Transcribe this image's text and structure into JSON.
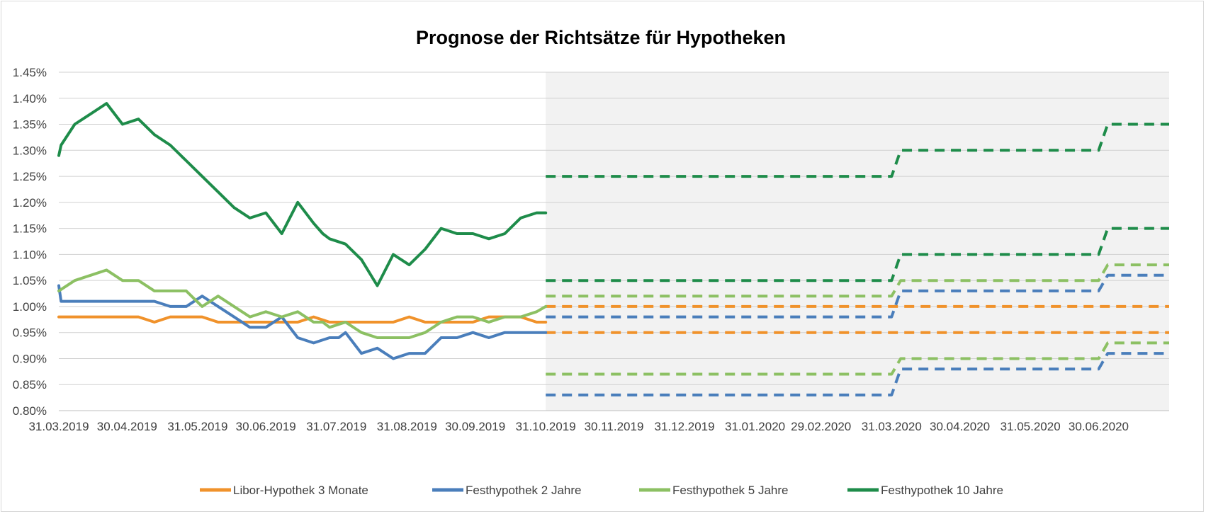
{
  "chart_data": {
    "type": "line",
    "title": "Prognose der Richtsätze für Hypotheken",
    "xlabel": "",
    "ylabel": "",
    "ylim": [
      0.8,
      1.45
    ],
    "xlim": [
      "2019-03-31",
      "2020-07-31"
    ],
    "grid": true,
    "legend_position": "bottom",
    "forecast_shading_start": "2019-10-31",
    "y_ticks": [
      "0.80%",
      "0.85%",
      "0.90%",
      "0.95%",
      "1.00%",
      "1.05%",
      "1.10%",
      "1.15%",
      "1.20%",
      "1.25%",
      "1.30%",
      "1.35%",
      "1.40%",
      "1.45%"
    ],
    "y_tick_values": [
      0.8,
      0.85,
      0.9,
      0.95,
      1.0,
      1.05,
      1.1,
      1.15,
      1.2,
      1.25,
      1.3,
      1.35,
      1.4,
      1.45
    ],
    "x_ticks": [
      {
        "label": "31.03.2019",
        "date": "2019-03-31"
      },
      {
        "label": "30.04.2019",
        "date": "2019-04-30"
      },
      {
        "label": "31.05.2019",
        "date": "2019-05-31"
      },
      {
        "label": "30.06.2019",
        "date": "2019-06-30"
      },
      {
        "label": "31.07.2019",
        "date": "2019-07-31"
      },
      {
        "label": "31.08.2019",
        "date": "2019-08-31"
      },
      {
        "label": "30.09.2019",
        "date": "2019-09-30"
      },
      {
        "label": "31.10.2019",
        "date": "2019-10-31"
      },
      {
        "label": "30.11.2019",
        "date": "2019-11-30"
      },
      {
        "label": "31.12.2019",
        "date": "2019-12-31"
      },
      {
        "label": "31.01.2020",
        "date": "2020-01-31"
      },
      {
        "label": "29.02.2020",
        "date": "2020-02-29"
      },
      {
        "label": "31.03.2020",
        "date": "2020-03-31"
      },
      {
        "label": "30.04.2020",
        "date": "2020-04-30"
      },
      {
        "label": "31.05.2020",
        "date": "2020-05-31"
      },
      {
        "label": "30.06.2020",
        "date": "2020-06-30"
      }
    ],
    "series": [
      {
        "name": "Libor-Hypothek 3 Monate",
        "color": "#f0922b",
        "historical": {
          "x": [
            "2019-03-31",
            "2019-04-07",
            "2019-04-14",
            "2019-04-21",
            "2019-04-28",
            "2019-05-05",
            "2019-05-12",
            "2019-05-19",
            "2019-05-26",
            "2019-06-02",
            "2019-06-09",
            "2019-06-16",
            "2019-06-23",
            "2019-06-30",
            "2019-07-07",
            "2019-07-14",
            "2019-07-21",
            "2019-07-28",
            "2019-08-04",
            "2019-08-11",
            "2019-08-18",
            "2019-08-25",
            "2019-09-01",
            "2019-09-08",
            "2019-09-15",
            "2019-09-22",
            "2019-09-29",
            "2019-10-06",
            "2019-10-13",
            "2019-10-20",
            "2019-10-27",
            "2019-10-31"
          ],
          "y": [
            0.98,
            0.98,
            0.98,
            0.98,
            0.98,
            0.98,
            0.97,
            0.98,
            0.98,
            0.98,
            0.97,
            0.97,
            0.97,
            0.97,
            0.97,
            0.97,
            0.98,
            0.97,
            0.97,
            0.97,
            0.97,
            0.97,
            0.98,
            0.97,
            0.97,
            0.97,
            0.97,
            0.98,
            0.98,
            0.98,
            0.97,
            0.97
          ]
        },
        "forecasts": [
          {
            "x": [
              "2019-10-31",
              "2020-07-31"
            ],
            "y": [
              1.0,
              1.0
            ]
          },
          {
            "x": [
              "2019-10-31",
              "2020-07-31"
            ],
            "y": [
              0.95,
              0.95
            ]
          }
        ]
      },
      {
        "name": "Festhypothek 2 Jahre",
        "color": "#4a7ebb",
        "historical": {
          "x": [
            "2019-03-31",
            "2019-04-01",
            "2019-04-07",
            "2019-04-14",
            "2019-04-21",
            "2019-04-28",
            "2019-05-05",
            "2019-05-12",
            "2019-05-19",
            "2019-05-26",
            "2019-06-02",
            "2019-06-09",
            "2019-06-16",
            "2019-06-23",
            "2019-06-30",
            "2019-07-07",
            "2019-07-14",
            "2019-07-21",
            "2019-07-28",
            "2019-08-01",
            "2019-08-04",
            "2019-08-11",
            "2019-08-18",
            "2019-08-25",
            "2019-09-01",
            "2019-09-08",
            "2019-09-15",
            "2019-09-22",
            "2019-09-29",
            "2019-10-06",
            "2019-10-13",
            "2019-10-20",
            "2019-10-27",
            "2019-10-31"
          ],
          "y": [
            1.04,
            1.01,
            1.01,
            1.01,
            1.01,
            1.01,
            1.01,
            1.01,
            1.0,
            1.0,
            1.02,
            1.0,
            0.98,
            0.96,
            0.96,
            0.98,
            0.94,
            0.93,
            0.94,
            0.94,
            0.95,
            0.91,
            0.92,
            0.9,
            0.91,
            0.91,
            0.94,
            0.94,
            0.95,
            0.94,
            0.95,
            0.95,
            0.95,
            0.95
          ]
        },
        "forecasts": [
          {
            "x": [
              "2019-10-31",
              "2020-03-31",
              "2020-04-04",
              "2020-06-30",
              "2020-07-04",
              "2020-07-31"
            ],
            "y": [
              0.98,
              0.98,
              1.03,
              1.03,
              1.06,
              1.06
            ]
          },
          {
            "x": [
              "2019-10-31",
              "2020-03-31",
              "2020-04-04",
              "2020-06-30",
              "2020-07-04",
              "2020-07-31"
            ],
            "y": [
              0.83,
              0.83,
              0.88,
              0.88,
              0.91,
              0.91
            ]
          }
        ]
      },
      {
        "name": "Festhypothek 5 Jahre",
        "color": "#8cc063",
        "historical": {
          "x": [
            "2019-03-31",
            "2019-04-07",
            "2019-04-14",
            "2019-04-21",
            "2019-04-28",
            "2019-05-05",
            "2019-05-12",
            "2019-05-19",
            "2019-05-26",
            "2019-06-02",
            "2019-06-09",
            "2019-06-16",
            "2019-06-23",
            "2019-06-30",
            "2019-07-07",
            "2019-07-14",
            "2019-07-21",
            "2019-07-25",
            "2019-07-28",
            "2019-08-04",
            "2019-08-11",
            "2019-08-18",
            "2019-08-25",
            "2019-09-01",
            "2019-09-08",
            "2019-09-15",
            "2019-09-22",
            "2019-09-29",
            "2019-10-06",
            "2019-10-13",
            "2019-10-20",
            "2019-10-27",
            "2019-10-31"
          ],
          "y": [
            1.03,
            1.05,
            1.06,
            1.07,
            1.05,
            1.05,
            1.03,
            1.03,
            1.03,
            1.0,
            1.02,
            1.0,
            0.98,
            0.99,
            0.98,
            0.99,
            0.97,
            0.97,
            0.96,
            0.97,
            0.95,
            0.94,
            0.94,
            0.94,
            0.95,
            0.97,
            0.98,
            0.98,
            0.97,
            0.98,
            0.98,
            0.99,
            1.0
          ]
        },
        "forecasts": [
          {
            "x": [
              "2019-10-31",
              "2020-03-31",
              "2020-04-04",
              "2020-06-30",
              "2020-07-04",
              "2020-07-31"
            ],
            "y": [
              1.02,
              1.02,
              1.05,
              1.05,
              1.08,
              1.08
            ]
          },
          {
            "x": [
              "2019-10-31",
              "2020-03-31",
              "2020-04-04",
              "2020-06-30",
              "2020-07-04",
              "2020-07-31"
            ],
            "y": [
              0.87,
              0.87,
              0.9,
              0.9,
              0.93,
              0.93
            ]
          }
        ]
      },
      {
        "name": "Festhypothek 10 Jahre",
        "color": "#1e8c4a",
        "historical": {
          "x": [
            "2019-03-31",
            "2019-04-01",
            "2019-04-07",
            "2019-04-14",
            "2019-04-21",
            "2019-04-28",
            "2019-05-05",
            "2019-05-12",
            "2019-05-19",
            "2019-05-26",
            "2019-06-02",
            "2019-06-09",
            "2019-06-16",
            "2019-06-23",
            "2019-06-30",
            "2019-07-07",
            "2019-07-14",
            "2019-07-21",
            "2019-07-25",
            "2019-07-28",
            "2019-08-04",
            "2019-08-11",
            "2019-08-18",
            "2019-08-25",
            "2019-09-01",
            "2019-09-08",
            "2019-09-15",
            "2019-09-22",
            "2019-09-29",
            "2019-10-06",
            "2019-10-13",
            "2019-10-20",
            "2019-10-27",
            "2019-10-31"
          ],
          "y": [
            1.29,
            1.31,
            1.35,
            1.37,
            1.39,
            1.35,
            1.36,
            1.33,
            1.31,
            1.28,
            1.25,
            1.22,
            1.19,
            1.17,
            1.18,
            1.14,
            1.2,
            1.16,
            1.14,
            1.13,
            1.12,
            1.09,
            1.04,
            1.1,
            1.08,
            1.11,
            1.15,
            1.14,
            1.14,
            1.13,
            1.14,
            1.17,
            1.18,
            1.18
          ]
        },
        "forecasts": [
          {
            "x": [
              "2019-10-31",
              "2020-03-31",
              "2020-04-04",
              "2020-06-30",
              "2020-07-04",
              "2020-07-31"
            ],
            "y": [
              1.25,
              1.25,
              1.3,
              1.3,
              1.35,
              1.35
            ]
          },
          {
            "x": [
              "2019-10-31",
              "2020-03-31",
              "2020-04-04",
              "2020-06-30",
              "2020-07-04",
              "2020-07-31"
            ],
            "y": [
              1.05,
              1.05,
              1.1,
              1.1,
              1.15,
              1.15
            ]
          }
        ]
      }
    ]
  }
}
